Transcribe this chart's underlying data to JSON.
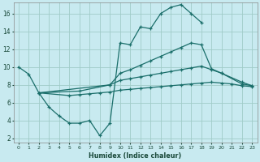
{
  "xlabel": "Humidex (Indice chaleur)",
  "xlim": [
    -0.5,
    23.5
  ],
  "ylim": [
    1.5,
    17.2
  ],
  "bg_color": "#c8eaf0",
  "line_color": "#1a6e6a",
  "grid_color": "#a0ccc8",
  "line1_x": [
    0,
    1,
    2,
    3,
    4,
    5,
    6,
    7,
    8,
    9,
    10,
    11,
    12,
    13,
    14,
    15,
    16,
    17,
    18
  ],
  "line1_y": [
    10.0,
    9.2,
    7.1,
    5.5,
    4.5,
    3.7,
    3.7,
    4.0,
    2.3,
    3.7,
    12.7,
    12.5,
    14.5,
    14.3,
    16.0,
    16.7,
    17.0,
    16.0,
    15.0
  ],
  "line2_x": [
    2,
    9,
    10,
    11,
    12,
    13,
    14,
    15,
    16,
    17,
    18,
    19,
    20,
    22,
    23
  ],
  "line2_y": [
    7.1,
    8.0,
    9.3,
    9.7,
    10.2,
    10.7,
    11.2,
    11.7,
    12.2,
    12.7,
    12.5,
    9.8,
    9.3,
    8.3,
    7.9
  ],
  "line3_x": [
    2,
    6,
    9,
    10,
    11,
    12,
    13,
    14,
    15,
    16,
    17,
    18,
    19,
    20,
    22,
    23
  ],
  "line3_y": [
    7.1,
    7.3,
    8.0,
    8.5,
    8.7,
    8.9,
    9.1,
    9.3,
    9.5,
    9.7,
    9.9,
    10.1,
    9.7,
    9.3,
    8.1,
    7.9
  ],
  "line4_x": [
    2,
    5,
    6,
    7,
    8,
    9,
    10,
    11,
    12,
    13,
    14,
    15,
    16,
    17,
    18,
    19,
    20,
    21,
    22,
    23
  ],
  "line4_y": [
    7.1,
    6.8,
    6.9,
    7.0,
    7.1,
    7.2,
    7.4,
    7.5,
    7.6,
    7.7,
    7.8,
    7.9,
    8.0,
    8.1,
    8.2,
    8.3,
    8.2,
    8.1,
    7.9,
    7.8
  ],
  "yticks": [
    2,
    4,
    6,
    8,
    10,
    12,
    14,
    16
  ],
  "xticks": [
    0,
    1,
    2,
    3,
    4,
    5,
    6,
    7,
    8,
    9,
    10,
    11,
    12,
    13,
    14,
    15,
    16,
    17,
    18,
    19,
    20,
    21,
    22,
    23
  ]
}
